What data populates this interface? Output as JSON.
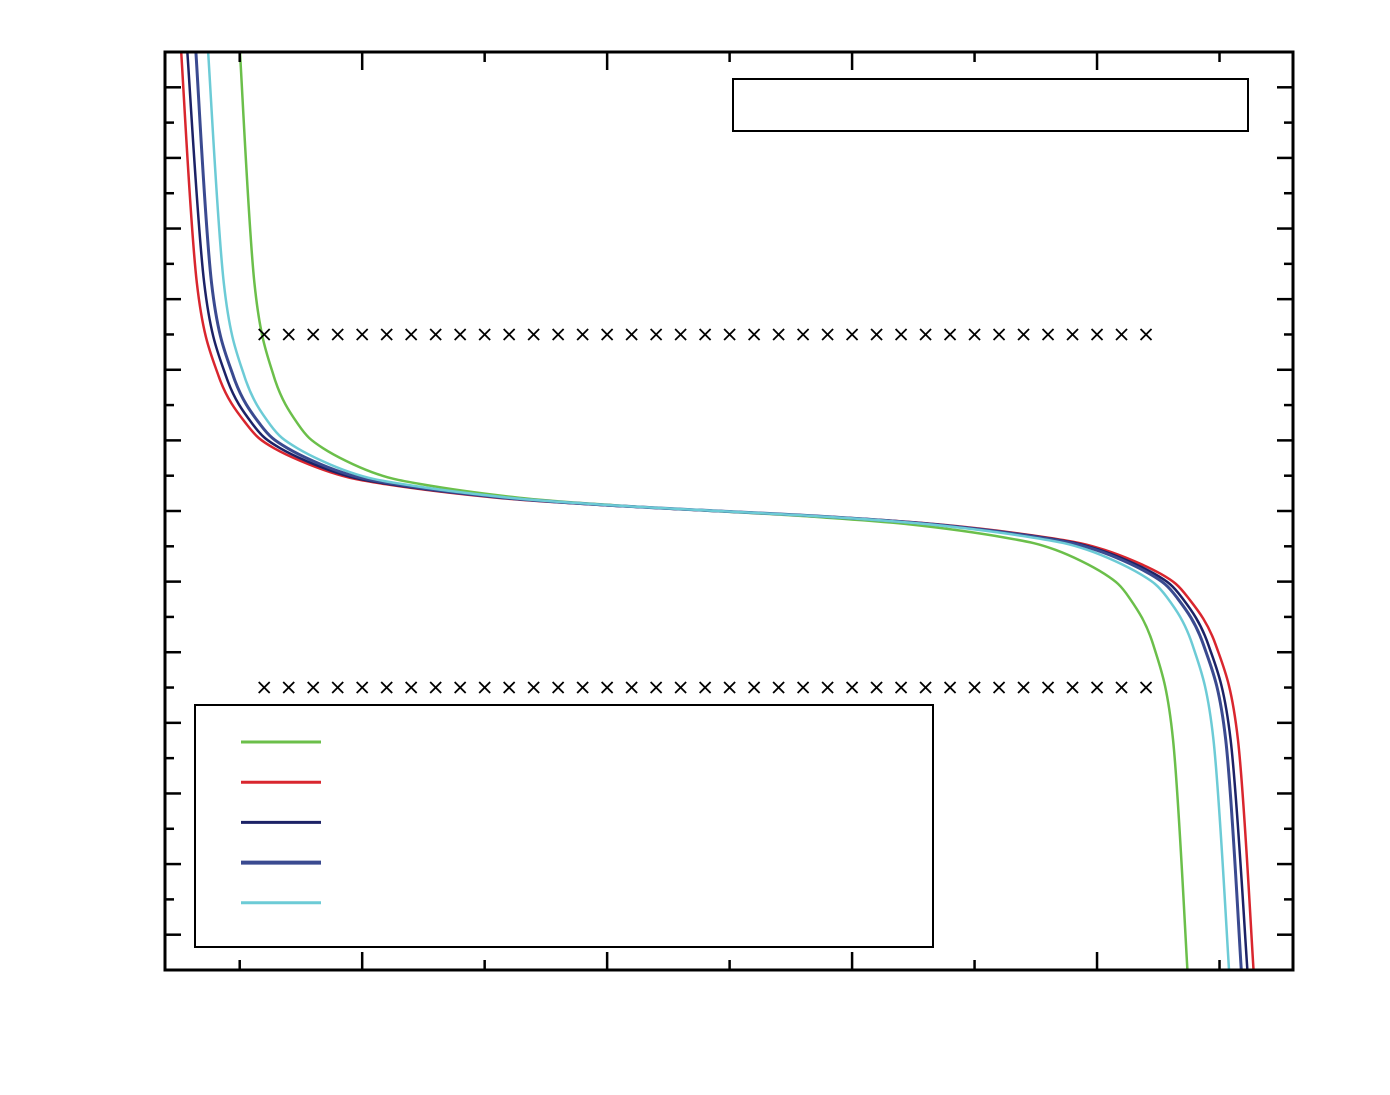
{
  "chart_data": {
    "type": "line",
    "title": "",
    "xlabel": "",
    "ylabel": "",
    "xlim": [
      0.39,
      9.6
    ],
    "ylim": [
      -6.5,
      6.5
    ],
    "x_major_ticks": [
      2,
      4,
      6,
      8
    ],
    "x_minor_ticks": [
      1,
      3,
      5,
      7,
      9
    ],
    "y_major_ticks": [
      -6,
      -5,
      -4,
      -3,
      -2,
      -1,
      0,
      1,
      2,
      3,
      4,
      5,
      6
    ],
    "y_minor_ticks": [
      -5.5,
      -4.5,
      -3.5,
      -2.5,
      -1.5,
      -0.5,
      0.5,
      1.5,
      2.5,
      3.5,
      4.5,
      5.5,
      -6.5,
      6.5
    ],
    "tick_labels_shown": false,
    "grid": false,
    "legend": {
      "placement": "bottom-left",
      "entries_labeled": false
    },
    "annotation_box": {
      "placement": "top-right",
      "text": ""
    },
    "y_shared": [
      6.56,
      3.23,
      1.9,
      1.22,
      0.89,
      0.55,
      0.38,
      0.19,
      0.08,
      0,
      -0.08,
      -0.19,
      -0.38,
      -0.55,
      -0.89,
      -1.22,
      -1.9,
      -3.23,
      -6.56
    ],
    "series": [
      {
        "color": "#6bbf4a",
        "x": [
          1.0,
          1.12,
          1.28,
          1.48,
          1.68,
          2.08,
          2.48,
          3.27,
          4.07,
          4.87,
          5.67,
          6.47,
          7.26,
          7.66,
          8.06,
          8.26,
          8.46,
          8.62,
          8.74
        ]
      },
      {
        "color": "#d9262e",
        "x": [
          0.52,
          0.65,
          0.83,
          1.06,
          1.28,
          1.74,
          2.19,
          3.09,
          4.0,
          4.9,
          5.8,
          6.71,
          7.61,
          8.06,
          8.52,
          8.74,
          8.97,
          9.15,
          9.28
        ]
      },
      {
        "color": "#1c2266",
        "x": [
          0.57,
          0.71,
          0.89,
          1.11,
          1.33,
          1.78,
          2.22,
          3.12,
          4.01,
          4.9,
          5.79,
          6.68,
          7.58,
          8.02,
          8.47,
          8.69,
          8.91,
          9.09,
          9.23
        ]
      },
      {
        "color": "#3a4a90",
        "x": [
          0.64,
          0.77,
          0.95,
          1.17,
          1.39,
          1.83,
          2.27,
          3.15,
          4.03,
          4.91,
          5.79,
          6.67,
          7.55,
          7.99,
          8.43,
          8.65,
          8.87,
          9.05,
          9.18
        ]
      },
      {
        "color": "#6ccbd6",
        "x": [
          0.74,
          0.87,
          1.04,
          1.25,
          1.47,
          1.9,
          2.33,
          3.19,
          4.05,
          4.91,
          5.77,
          6.63,
          7.49,
          7.92,
          8.35,
          8.57,
          8.78,
          8.95,
          9.08
        ]
      }
    ],
    "markers": [
      {
        "symbol": "cross",
        "color": "#000000",
        "y": 2.5,
        "x_start": 1.2,
        "x_end": 8.4,
        "x_step": 0.2
      },
      {
        "symbol": "cross",
        "color": "#000000",
        "y": -2.5,
        "x_start": 1.2,
        "x_end": 8.4,
        "x_step": 0.2
      }
    ]
  }
}
